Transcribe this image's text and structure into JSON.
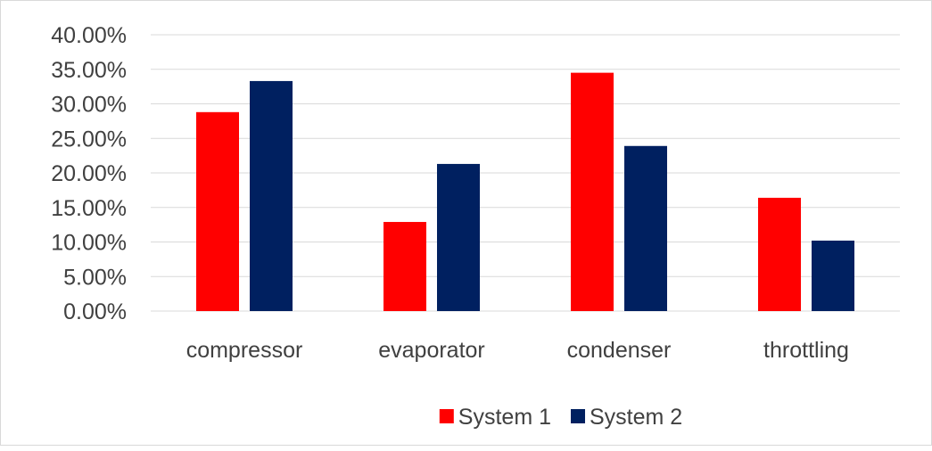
{
  "chart_data": {
    "type": "bar",
    "categories": [
      "compressor",
      "evaporator",
      "condenser",
      "throttling"
    ],
    "series": [
      {
        "name": "System 1",
        "color": "#ff0000",
        "values": [
          28.8,
          12.9,
          34.5,
          16.4
        ]
      },
      {
        "name": "System 2",
        "color": "#002060",
        "values": [
          33.3,
          21.3,
          23.9,
          10.2
        ]
      }
    ],
    "y_ticks": [
      "0.00%",
      "5.00%",
      "10.00%",
      "15.00%",
      "20.00%",
      "25.00%",
      "30.00%",
      "35.00%",
      "40.00%"
    ],
    "ylim": [
      0,
      40
    ],
    "y_unit": "percent",
    "grid": true,
    "legend_position": "bottom",
    "gridline_color": "#d9d9d9",
    "text_color": "#404040"
  }
}
